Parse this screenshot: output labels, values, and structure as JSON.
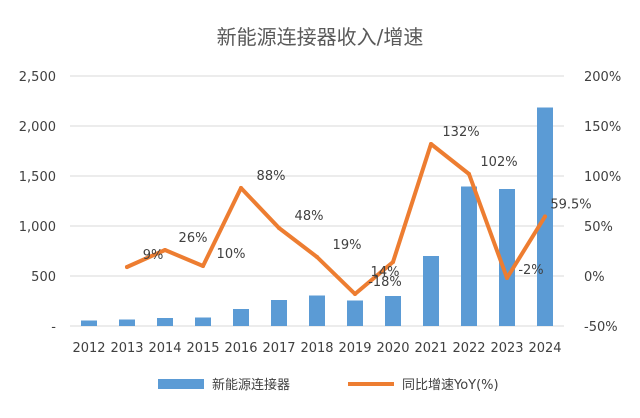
{
  "chart_data": {
    "type": "bar",
    "title": "新能源连接器收入/增速",
    "categories": [
      "2012",
      "2013",
      "2014",
      "2015",
      "2016",
      "2017",
      "2018",
      "2019",
      "2020",
      "2021",
      "2022",
      "2023",
      "2024"
    ],
    "series": [
      {
        "name": "新能源连接器",
        "type": "bar",
        "axis": "left",
        "color": "#5b9bd5",
        "values": [
          55,
          65,
          80,
          85,
          170,
          260,
          305,
          255,
          300,
          700,
          1395,
          1370,
          2185
        ]
      },
      {
        "name": "同比增速YoY(%)",
        "type": "line",
        "axis": "right",
        "color": "#ed7d31",
        "values": [
          null,
          9,
          26,
          10,
          88,
          48,
          19,
          -18,
          14,
          132,
          102,
          -2,
          59.5
        ],
        "labels": [
          "",
          "9%",
          "26%",
          "10%",
          "88%",
          "48%",
          "19%",
          "-18%",
          "14%",
          "132%",
          "102%",
          "-2%",
          "59.5%"
        ]
      }
    ],
    "y_left": {
      "min": 0,
      "max": 2500,
      "ticks": [
        0,
        500,
        1000,
        1500,
        2000,
        2500
      ],
      "tick_labels": [
        "-",
        "500",
        "1,000",
        "1,500",
        "2,000",
        "2,500"
      ]
    },
    "y_right": {
      "min": -50,
      "max": 200,
      "ticks": [
        -50,
        0,
        50,
        100,
        150,
        200
      ],
      "tick_labels": [
        "-50%",
        "0%",
        "50%",
        "100%",
        "150%",
        "200%"
      ]
    },
    "grid": true,
    "legend_position": "bottom"
  }
}
